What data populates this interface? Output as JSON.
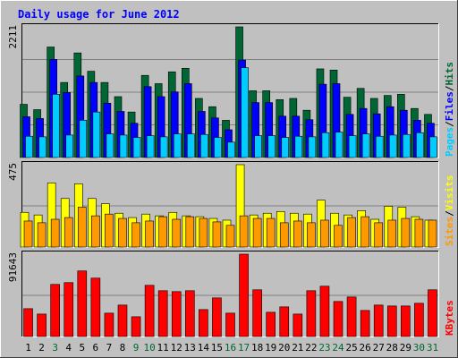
{
  "title": "Daily usage for June 2012",
  "chart_data": [
    {
      "type": "bar",
      "panel": "hits-files-pages",
      "ymax_label": "2211",
      "ylim": [
        0,
        2211
      ],
      "right_labels": [
        "Pages",
        "/",
        "Files",
        "/",
        "Hits"
      ],
      "categories": [
        "1",
        "2",
        "3",
        "4",
        "5",
        "6",
        "7",
        "8",
        "9",
        "10",
        "11",
        "12",
        "13",
        "14",
        "15",
        "16",
        "17",
        "18",
        "19",
        "20",
        "21",
        "22",
        "23",
        "24",
        "25",
        "26",
        "27",
        "28",
        "29",
        "30",
        "31"
      ],
      "series": [
        {
          "name": "Hits",
          "color": "#006633",
          "values": [
            900,
            810,
            1870,
            1270,
            1770,
            1460,
            1270,
            1030,
            770,
            1390,
            1250,
            1450,
            1510,
            1000,
            860,
            630,
            2211,
            1130,
            1130,
            980,
            1000,
            800,
            1500,
            1480,
            1020,
            1170,
            1000,
            1050,
            1070,
            830,
            730
          ]
        },
        {
          "name": "Files",
          "color": "#0000ff",
          "values": [
            690,
            660,
            1660,
            1100,
            1380,
            1270,
            920,
            780,
            580,
            1200,
            1030,
            1110,
            1250,
            780,
            670,
            470,
            1650,
            930,
            930,
            700,
            700,
            640,
            1240,
            1250,
            730,
            830,
            740,
            860,
            800,
            630,
            580
          ]
        },
        {
          "name": "Pages",
          "color": "#00ccff",
          "values": [
            360,
            350,
            1070,
            380,
            630,
            770,
            400,
            380,
            340,
            370,
            350,
            400,
            400,
            390,
            340,
            260,
            1520,
            370,
            370,
            340,
            360,
            350,
            420,
            430,
            370,
            400,
            360,
            380,
            390,
            420,
            350
          ]
        }
      ]
    },
    {
      "type": "bar",
      "panel": "visits-sites",
      "ymax_label": "475",
      "ylim": [
        0,
        475
      ],
      "right_labels": [
        "Sites",
        "/",
        "Visits"
      ],
      "categories": [
        "1",
        "2",
        "3",
        "4",
        "5",
        "6",
        "7",
        "8",
        "9",
        "10",
        "11",
        "12",
        "13",
        "14",
        "15",
        "16",
        "17",
        "18",
        "19",
        "20",
        "21",
        "22",
        "23",
        "24",
        "25",
        "26",
        "27",
        "28",
        "29",
        "30",
        "31"
      ],
      "series": [
        {
          "name": "Visits",
          "color": "#ffff00",
          "values": [
            200,
            185,
            370,
            280,
            365,
            280,
            250,
            195,
            170,
            190,
            180,
            200,
            180,
            175,
            165,
            155,
            475,
            185,
            195,
            205,
            195,
            190,
            270,
            195,
            185,
            210,
            160,
            235,
            230,
            175,
            155
          ]
        },
        {
          "name": "Sites",
          "color": "#ff9900",
          "values": [
            150,
            140,
            160,
            170,
            230,
            180,
            190,
            165,
            140,
            150,
            175,
            160,
            175,
            165,
            145,
            125,
            180,
            165,
            165,
            140,
            150,
            140,
            155,
            125,
            170,
            175,
            140,
            155,
            165,
            160,
            155
          ]
        }
      ]
    },
    {
      "type": "bar",
      "panel": "kbytes",
      "ymax_label": "91643",
      "ylim": [
        0,
        91643
      ],
      "right_labels": [
        "KBytes"
      ],
      "categories": [
        "1",
        "2",
        "3",
        "4",
        "5",
        "6",
        "7",
        "8",
        "9",
        "10",
        "11",
        "12",
        "13",
        "14",
        "15",
        "16",
        "17",
        "18",
        "19",
        "20",
        "21",
        "22",
        "23",
        "24",
        "25",
        "26",
        "27",
        "28",
        "29",
        "30",
        "31"
      ],
      "series": [
        {
          "name": "KBytes",
          "color": "#ff0000",
          "values": [
            31000,
            25000,
            58000,
            60000,
            73000,
            65000,
            26000,
            35000,
            22000,
            57000,
            51000,
            50000,
            51000,
            30000,
            43000,
            26000,
            91643,
            52000,
            27000,
            33000,
            25000,
            51000,
            56000,
            39000,
            44000,
            29000,
            35000,
            34000,
            34000,
            37000,
            52000
          ]
        }
      ]
    }
  ],
  "weekend_days": [
    "3",
    "9",
    "10",
    "16",
    "17",
    "23",
    "24",
    "30",
    "31"
  ],
  "colors": {
    "background": "#c0c0c0",
    "title": "#0000ff",
    "tick_normal": "#000000",
    "tick_weekend": "#006633",
    "grid": "#808080"
  }
}
